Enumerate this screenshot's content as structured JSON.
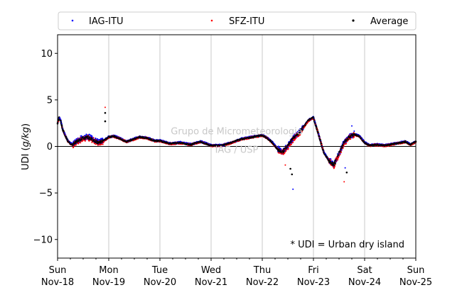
{
  "chart_data": {
    "type": "scatter",
    "ylabel": "UDI (g/kg)",
    "ylabel_text": "UDI (",
    "ylabel_unit": "g/kg",
    "ylabel_close": ")",
    "ylim": [
      -12,
      12
    ],
    "yticks": [
      -10,
      -5,
      0,
      5,
      10
    ],
    "ytick_labels": [
      "−10",
      "−5",
      "0",
      "5",
      "10"
    ],
    "xlim": [
      0,
      7
    ],
    "xticks": [
      0,
      1,
      2,
      3,
      4,
      5,
      6,
      7
    ],
    "xtick_labels": [
      [
        "Sun",
        "Nov-18"
      ],
      [
        "Mon",
        "Nov-19"
      ],
      [
        "Tue",
        "Nov-20"
      ],
      [
        "Wed",
        "Nov-21"
      ],
      [
        "Thu",
        "Nov-22"
      ],
      [
        "Fri",
        "Nov-23"
      ],
      [
        "Sat",
        "Nov-24"
      ],
      [
        "Sun",
        "Nov-25"
      ]
    ],
    "grid": "vertical",
    "zero_line": true,
    "legend_position": "top",
    "annotation": "* UDI = Urban dry island",
    "watermark": [
      "Grupo de Micrometeorologia",
      "IAG / USP"
    ],
    "series": [
      {
        "name": "IAG-ITU",
        "color": "#0000ff"
      },
      {
        "name": "SFZ-ITU",
        "color": "#ff0000"
      },
      {
        "name": "Average",
        "color": "#000000"
      }
    ],
    "average_curve": {
      "x": [
        0,
        0.03,
        0.06,
        0.1,
        0.15,
        0.2,
        0.25,
        0.3,
        0.4,
        0.5,
        0.6,
        0.7,
        0.8,
        0.9,
        1.0,
        1.1,
        1.2,
        1.35,
        1.5,
        1.6,
        1.75,
        1.9,
        2.0,
        2.2,
        2.4,
        2.6,
        2.8,
        3.0,
        3.2,
        3.4,
        3.6,
        3.8,
        4.0,
        4.1,
        4.2,
        4.3,
        4.4,
        4.5,
        4.6,
        4.7,
        4.8,
        4.9,
        5.0,
        5.1,
        5.2,
        5.3,
        5.4,
        5.5,
        5.6,
        5.7,
        5.8,
        5.9,
        6.0,
        6.1,
        6.2,
        6.4,
        6.6,
        6.8,
        6.9,
        7.0
      ],
      "y": [
        2.5,
        3.1,
        2.8,
        1.8,
        1.2,
        0.6,
        0.3,
        0.2,
        0.6,
        0.9,
        1.0,
        0.7,
        0.4,
        0.6,
        1.0,
        1.1,
        0.9,
        0.5,
        0.8,
        1.0,
        0.9,
        0.6,
        0.6,
        0.3,
        0.4,
        0.2,
        0.5,
        0.1,
        0.1,
        0.4,
        0.8,
        1.0,
        1.2,
        0.9,
        0.4,
        -0.3,
        -0.6,
        0.0,
        0.8,
        1.3,
        2.0,
        2.8,
        3.1,
        1.3,
        -0.6,
        -1.5,
        -2.0,
        -0.8,
        0.4,
        1.0,
        1.3,
        1.1,
        0.4,
        0.1,
        0.2,
        0.1,
        0.3,
        0.5,
        0.2,
        0.5
      ]
    },
    "outliers": [
      {
        "x": 0.93,
        "y": 4.2,
        "series": "SFZ-ITU"
      },
      {
        "x": 0.93,
        "y": 3.6,
        "series": "Average"
      },
      {
        "x": 0.93,
        "y": 2.7,
        "series": "Average"
      },
      {
        "x": 4.6,
        "y": -4.6,
        "series": "IAG-ITU"
      },
      {
        "x": 4.58,
        "y": -3.0,
        "series": "Average"
      },
      {
        "x": 4.55,
        "y": -2.4,
        "series": "Average"
      },
      {
        "x": 5.6,
        "y": -3.8,
        "series": "SFZ-ITU"
      },
      {
        "x": 5.65,
        "y": -2.8,
        "series": "Average"
      },
      {
        "x": 5.62,
        "y": -2.3,
        "series": "IAG-ITU"
      },
      {
        "x": 4.45,
        "y": -2.0,
        "series": "SFZ-ITU"
      },
      {
        "x": 5.45,
        "y": -1.2,
        "series": "SFZ-ITU"
      },
      {
        "x": 5.75,
        "y": 2.2,
        "series": "IAG-ITU"
      }
    ]
  }
}
